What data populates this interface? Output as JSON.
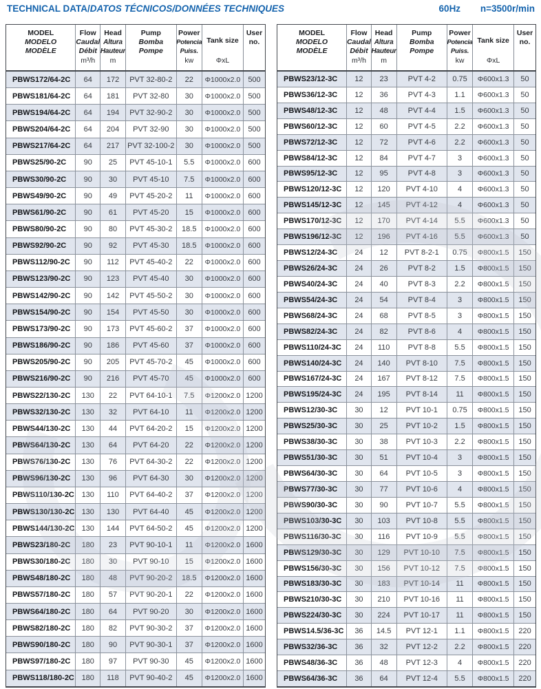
{
  "page": {
    "title_en": "TECHNICAL DATA/",
    "title_intl": "DATOS TÉCNICOS/DONNÉES TECHNIQUES",
    "frequency": "60Hz",
    "speed": "n=3500r/min"
  },
  "colors": {
    "accent_blue": "#1463ad",
    "row_tint": "#e0e5ee",
    "grid_line": "#8a919b",
    "outer_border": "#42464c"
  },
  "header": {
    "columns": [
      {
        "key": "model",
        "lines": [
          "MODEL",
          "MODELO",
          "MODÈLE"
        ],
        "italic_lines": [
          1,
          2
        ],
        "unit": ""
      },
      {
        "key": "flow",
        "lines": [
          "Flow",
          "Caudal",
          "Débit"
        ],
        "italic_lines": [
          1,
          2
        ],
        "unit": "m³/h"
      },
      {
        "key": "head",
        "lines": [
          "Head",
          "Altura",
          "Hauteur"
        ],
        "italic_lines": [
          1,
          2
        ],
        "unit": "m"
      },
      {
        "key": "pump",
        "lines": [
          "Pump",
          "Bomba",
          "Pompe"
        ],
        "italic_lines": [
          1,
          2
        ],
        "unit": ""
      },
      {
        "key": "power",
        "lines": [
          "Power",
          "Potencia",
          "Puiss."
        ],
        "italic_lines": [
          1,
          2
        ],
        "unit": "kw"
      },
      {
        "key": "tank-size",
        "lines": [
          "Tank size"
        ],
        "italic_lines": [],
        "unit": "ΦxL"
      },
      {
        "key": "user-no",
        "lines": [
          "User",
          "no."
        ],
        "italic_lines": [],
        "unit": ""
      }
    ]
  },
  "left_table": {
    "rows": [
      [
        "PBWS172/64-2C",
        "64",
        "172",
        "PVT 32-80-2",
        "22",
        "Φ1000x2.0",
        "500"
      ],
      [
        "PBWS181/64-2C",
        "64",
        "181",
        "PVT 32-80",
        "30",
        "Φ1000x2.0",
        "500"
      ],
      [
        "PBWS194/64-2C",
        "64",
        "194",
        "PVT 32-90-2",
        "30",
        "Φ1000x2.0",
        "500"
      ],
      [
        "PBWS204/64-2C",
        "64",
        "204",
        "PVT 32-90",
        "30",
        "Φ1000x2.0",
        "500"
      ],
      [
        "PBWS217/64-2C",
        "64",
        "217",
        "PVT 32-100-2",
        "30",
        "Φ1000x2.0",
        "500"
      ],
      [
        "PBWS25/90-2C",
        "90",
        "25",
        "PVT 45-10-1",
        "5.5",
        "Φ1000x2.0",
        "600"
      ],
      [
        "PBWS30/90-2C",
        "90",
        "30",
        "PVT 45-10",
        "7.5",
        "Φ1000x2.0",
        "600"
      ],
      [
        "PBWS49/90-2C",
        "90",
        "49",
        "PVT 45-20-2",
        "11",
        "Φ1000x2.0",
        "600"
      ],
      [
        "PBWS61/90-2C",
        "90",
        "61",
        "PVT 45-20",
        "15",
        "Φ1000x2.0",
        "600"
      ],
      [
        "PBWS80/90-2C",
        "90",
        "80",
        "PVT 45-30-2",
        "18.5",
        "Φ1000x2.0",
        "600"
      ],
      [
        "PBWS92/90-2C",
        "90",
        "92",
        "PVT 45-30",
        "18.5",
        "Φ1000x2.0",
        "600"
      ],
      [
        "PBWS112/90-2C",
        "90",
        "112",
        "PVT 45-40-2",
        "22",
        "Φ1000x2.0",
        "600"
      ],
      [
        "PBWS123/90-2C",
        "90",
        "123",
        "PVT 45-40",
        "30",
        "Φ1000x2.0",
        "600"
      ],
      [
        "PBWS142/90-2C",
        "90",
        "142",
        "PVT 45-50-2",
        "30",
        "Φ1000x2.0",
        "600"
      ],
      [
        "PBWS154/90-2C",
        "90",
        "154",
        "PVT 45-50",
        "30",
        "Φ1000x2.0",
        "600"
      ],
      [
        "PBWS173/90-2C",
        "90",
        "173",
        "PVT 45-60-2",
        "37",
        "Φ1000x2.0",
        "600"
      ],
      [
        "PBWS186/90-2C",
        "90",
        "186",
        "PVT 45-60",
        "37",
        "Φ1000x2.0",
        "600"
      ],
      [
        "PBWS205/90-2C",
        "90",
        "205",
        "PVT 45-70-2",
        "45",
        "Φ1000x2.0",
        "600"
      ],
      [
        "PBWS216/90-2C",
        "90",
        "216",
        "PVT 45-70",
        "45",
        "Φ1000x2.0",
        "600"
      ],
      [
        "PBWS22/130-2C",
        "130",
        "22",
        "PVT 64-10-1",
        "7.5",
        "Φ1200x2.0",
        "1200"
      ],
      [
        "PBWS32/130-2C",
        "130",
        "32",
        "PVT 64-10",
        "11",
        "Φ1200x2.0",
        "1200"
      ],
      [
        "PBWS44/130-2C",
        "130",
        "44",
        "PVT 64-20-2",
        "15",
        "Φ1200x2.0",
        "1200"
      ],
      [
        "PBWS64/130-2C",
        "130",
        "64",
        "PVT 64-20",
        "22",
        "Φ1200x2.0",
        "1200"
      ],
      [
        "PBWS76/130-2C",
        "130",
        "76",
        "PVT 64-30-2",
        "22",
        "Φ1200x2.0",
        "1200"
      ],
      [
        "PBWS96/130-2C",
        "130",
        "96",
        "PVT 64-30",
        "30",
        "Φ1200x2.0",
        "1200"
      ],
      [
        "PBWS110/130-2C",
        "130",
        "110",
        "PVT 64-40-2",
        "37",
        "Φ1200x2.0",
        "1200"
      ],
      [
        "PBWS130/130-2C",
        "130",
        "130",
        "PVT 64-40",
        "45",
        "Φ1200x2.0",
        "1200"
      ],
      [
        "PBWS144/130-2C",
        "130",
        "144",
        "PVT 64-50-2",
        "45",
        "Φ1200x2.0",
        "1200"
      ],
      [
        "PBWS23/180-2C",
        "180",
        "23",
        "PVT 90-10-1",
        "11",
        "Φ1200x2.0",
        "1600"
      ],
      [
        "PBWS30/180-2C",
        "180",
        "30",
        "PVT 90-10",
        "15",
        "Φ1200x2.0",
        "1600"
      ],
      [
        "PBWS48/180-2C",
        "180",
        "48",
        "PVT 90-20-2",
        "18.5",
        "Φ1200x2.0",
        "1600"
      ],
      [
        "PBWS57/180-2C",
        "180",
        "57",
        "PVT 90-20-1",
        "22",
        "Φ1200x2.0",
        "1600"
      ],
      [
        "PBWS64/180-2C",
        "180",
        "64",
        "PVT 90-20",
        "30",
        "Φ1200x2.0",
        "1600"
      ],
      [
        "PBWS82/180-2C",
        "180",
        "82",
        "PVT 90-30-2",
        "37",
        "Φ1200x2.0",
        "1600"
      ],
      [
        "PBWS90/180-2C",
        "180",
        "90",
        "PVT 90-30-1",
        "37",
        "Φ1200x2.0",
        "1600"
      ],
      [
        "PBWS97/180-2C",
        "180",
        "97",
        "PVT 90-30",
        "45",
        "Φ1200x2.0",
        "1600"
      ],
      [
        "PBWS118/180-2C",
        "180",
        "118",
        "PVT 90-40-2",
        "45",
        "Φ1200x2.0",
        "1600"
      ]
    ]
  },
  "right_table": {
    "rows": [
      [
        "PBWS23/12-3C",
        "12",
        "23",
        "PVT 4-2",
        "0.75",
        "Φ600x1.3",
        "50"
      ],
      [
        "PBWS36/12-3C",
        "12",
        "36",
        "PVT 4-3",
        "1.1",
        "Φ600x1.3",
        "50"
      ],
      [
        "PBWS48/12-3C",
        "12",
        "48",
        "PVT 4-4",
        "1.5",
        "Φ600x1.3",
        "50"
      ],
      [
        "PBWS60/12-3C",
        "12",
        "60",
        "PVT 4-5",
        "2.2",
        "Φ600x1.3",
        "50"
      ],
      [
        "PBWS72/12-3C",
        "12",
        "72",
        "PVT 4-6",
        "2.2",
        "Φ600x1.3",
        "50"
      ],
      [
        "PBWS84/12-3C",
        "12",
        "84",
        "PVT 4-7",
        "3",
        "Φ600x1.3",
        "50"
      ],
      [
        "PBWS95/12-3C",
        "12",
        "95",
        "PVT 4-8",
        "3",
        "Φ600x1.3",
        "50"
      ],
      [
        "PBWS120/12-3C",
        "12",
        "120",
        "PVT 4-10",
        "4",
        "Φ600x1.3",
        "50"
      ],
      [
        "PBWS145/12-3C",
        "12",
        "145",
        "PVT 4-12",
        "4",
        "Φ600x1.3",
        "50"
      ],
      [
        "PBWS170/12-3C",
        "12",
        "170",
        "PVT 4-14",
        "5.5",
        "Φ600x1.3",
        "50"
      ],
      [
        "PBWS196/12-3C",
        "12",
        "196",
        "PVT 4-16",
        "5.5",
        "Φ600x1.3",
        "50"
      ],
      [
        "PBWS12/24-3C",
        "24",
        "12",
        "PVT 8-2-1",
        "0.75",
        "Φ800x1.5",
        "150"
      ],
      [
        "PBWS26/24-3C",
        "24",
        "26",
        "PVT 8-2",
        "1.5",
        "Φ800x1.5",
        "150"
      ],
      [
        "PBWS40/24-3C",
        "24",
        "40",
        "PVT 8-3",
        "2.2",
        "Φ800x1.5",
        "150"
      ],
      [
        "PBWS54/24-3C",
        "24",
        "54",
        "PVT 8-4",
        "3",
        "Φ800x1.5",
        "150"
      ],
      [
        "PBWS68/24-3C",
        "24",
        "68",
        "PVT 8-5",
        "3",
        "Φ800x1.5",
        "150"
      ],
      [
        "PBWS82/24-3C",
        "24",
        "82",
        "PVT 8-6",
        "4",
        "Φ800x1.5",
        "150"
      ],
      [
        "PBWS110/24-3C",
        "24",
        "110",
        "PVT 8-8",
        "5.5",
        "Φ800x1.5",
        "150"
      ],
      [
        "PBWS140/24-3C",
        "24",
        "140",
        "PVT 8-10",
        "7.5",
        "Φ800x1.5",
        "150"
      ],
      [
        "PBWS167/24-3C",
        "24",
        "167",
        "PVT 8-12",
        "7.5",
        "Φ800x1.5",
        "150"
      ],
      [
        "PBWS195/24-3C",
        "24",
        "195",
        "PVT 8-14",
        "11",
        "Φ800x1.5",
        "150"
      ],
      [
        "PBWS12/30-3C",
        "30",
        "12",
        "PVT 10-1",
        "0.75",
        "Φ800x1.5",
        "150"
      ],
      [
        "PBWS25/30-3C",
        "30",
        "25",
        "PVT 10-2",
        "1.5",
        "Φ800x1.5",
        "150"
      ],
      [
        "PBWS38/30-3C",
        "30",
        "38",
        "PVT 10-3",
        "2.2",
        "Φ800x1.5",
        "150"
      ],
      [
        "PBWS51/30-3C",
        "30",
        "51",
        "PVT 10-4",
        "3",
        "Φ800x1.5",
        "150"
      ],
      [
        "PBWS64/30-3C",
        "30",
        "64",
        "PVT 10-5",
        "3",
        "Φ800x1.5",
        "150"
      ],
      [
        "PBWS77/30-3C",
        "30",
        "77",
        "PVT 10-6",
        "4",
        "Φ800x1.5",
        "150"
      ],
      [
        "PBWS90/30-3C",
        "30",
        "90",
        "PVT 10-7",
        "5.5",
        "Φ800x1.5",
        "150"
      ],
      [
        "PBWS103/30-3C",
        "30",
        "103",
        "PVT 10-8",
        "5.5",
        "Φ800x1.5",
        "150"
      ],
      [
        "PBWS116/30-3C",
        "30",
        "116",
        "PVT 10-9",
        "5.5",
        "Φ800x1.5",
        "150"
      ],
      [
        "PBWS129/30-3C",
        "30",
        "129",
        "PVT 10-10",
        "7.5",
        "Φ800x1.5",
        "150"
      ],
      [
        "PBWS156/30-3C",
        "30",
        "156",
        "PVT 10-12",
        "7.5",
        "Φ800x1.5",
        "150"
      ],
      [
        "PBWS183/30-3C",
        "30",
        "183",
        "PVT 10-14",
        "11",
        "Φ800x1.5",
        "150"
      ],
      [
        "PBWS210/30-3C",
        "30",
        "210",
        "PVT 10-16",
        "11",
        "Φ800x1.5",
        "150"
      ],
      [
        "PBWS224/30-3C",
        "30",
        "224",
        "PVT 10-17",
        "11",
        "Φ800x1.5",
        "150"
      ],
      [
        "PBWS14.5/36-3C",
        "36",
        "14.5",
        "PVT 12-1",
        "1.1",
        "Φ800x1.5",
        "220"
      ],
      [
        "PBWS32/36-3C",
        "36",
        "32",
        "PVT 12-2",
        "2.2",
        "Φ800x1.5",
        "220"
      ],
      [
        "PBWS48/36-3C",
        "36",
        "48",
        "PVT 12-3",
        "4",
        "Φ800x1.5",
        "220"
      ],
      [
        "PBWS64/36-3C",
        "36",
        "64",
        "PVT 12-4",
        "5.5",
        "Φ800x1.5",
        "220"
      ]
    ]
  }
}
